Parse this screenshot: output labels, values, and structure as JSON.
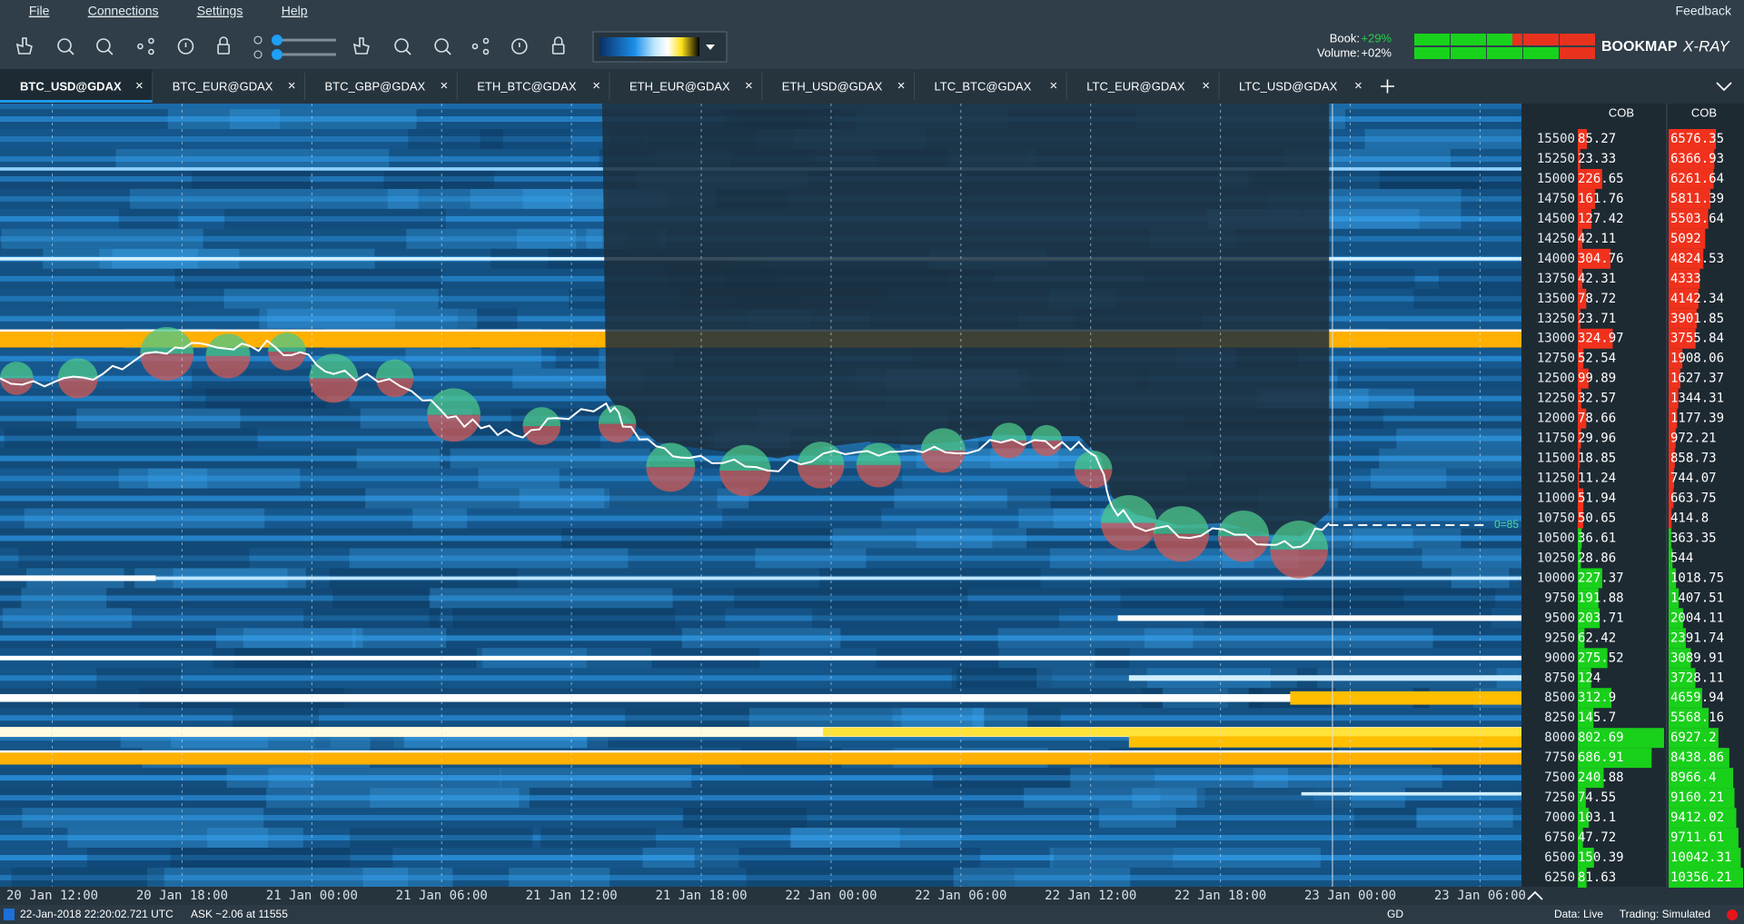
{
  "menu": {
    "items": [
      "File",
      "Connections",
      "Settings",
      "Help"
    ],
    "feedback": "Feedback"
  },
  "toolbar": {
    "book_label": "Book:",
    "book_value": "+29%",
    "volume_label": "Volume:",
    "volume_value": "+02%",
    "brand": "BOOKMAP",
    "brand_suffix": "X-RAY"
  },
  "tabs": [
    "BTC_USD@GDAX",
    "BTC_EUR@GDAX",
    "BTC_GBP@GDAX",
    "ETH_BTC@GDAX",
    "ETH_EUR@GDAX",
    "ETH_USD@GDAX",
    "LTC_BTC@GDAX",
    "LTC_EUR@GDAX",
    "LTC_USD@GDAX"
  ],
  "chart": {
    "cob_headers": [
      "COB",
      "COB"
    ],
    "price_levels": [
      15500,
      15250,
      15000,
      14750,
      14500,
      14250,
      14000,
      13750,
      13500,
      13250,
      13000,
      12750,
      12500,
      12250,
      12000,
      11750,
      11500,
      11250,
      11000,
      10750,
      10500,
      10250,
      10000,
      9750,
      9500,
      9250,
      9000,
      8750,
      8500,
      8250,
      8000,
      7750,
      7500,
      7250,
      7000,
      6750,
      6500,
      6250
    ],
    "cob_left": [
      85.27,
      23.33,
      226.65,
      161.76,
      127.42,
      42.11,
      304.76,
      42.31,
      78.72,
      23.71,
      324.97,
      52.54,
      99.89,
      32.57,
      78.66,
      29.96,
      18.85,
      11.24,
      51.94,
      50.65,
      36.61,
      28.86,
      227.37,
      191.88,
      203.71,
      62.42,
      275.52,
      124,
      312.9,
      145.7,
      802.69,
      686.91,
      240.88,
      74.55,
      103.1,
      47.72,
      150.39,
      81.63
    ],
    "cob_right": [
      6576.35,
      6366.93,
      6261.64,
      5811.39,
      5503.64,
      5092,
      4824.53,
      4333,
      4142.34,
      3901.85,
      3755.84,
      1908.06,
      1627.37,
      1344.31,
      1177.39,
      972.21,
      858.73,
      744.07,
      663.75,
      414.8,
      363.35,
      544,
      1018.75,
      1407.51,
      2004.11,
      2391.74,
      3089.91,
      3728.11,
      4659.94,
      5568.16,
      6927.2,
      8438.86,
      8966.4,
      9160.21,
      9412.02,
      9711.61,
      10042.31,
      10356.21
    ],
    "time_labels": [
      "20 Jan 12:00",
      "20 Jan 18:00",
      "21 Jan 00:00",
      "21 Jan 06:00",
      "21 Jan 12:00",
      "21 Jan 18:00",
      "22 Jan 00:00",
      "22 Jan 06:00",
      "22 Jan 12:00",
      "22 Jan 18:00",
      "23 Jan 00:00",
      "23 Jan 06:00"
    ],
    "last_price_label": "0=85"
  },
  "status": {
    "timestamp": "22-Jan-2018 22:20:02.721 UTC",
    "ask": "ASK ~2.06 at 11555",
    "gd": "GD",
    "data": "Data: Live",
    "trading": "Trading: Simulated"
  }
}
